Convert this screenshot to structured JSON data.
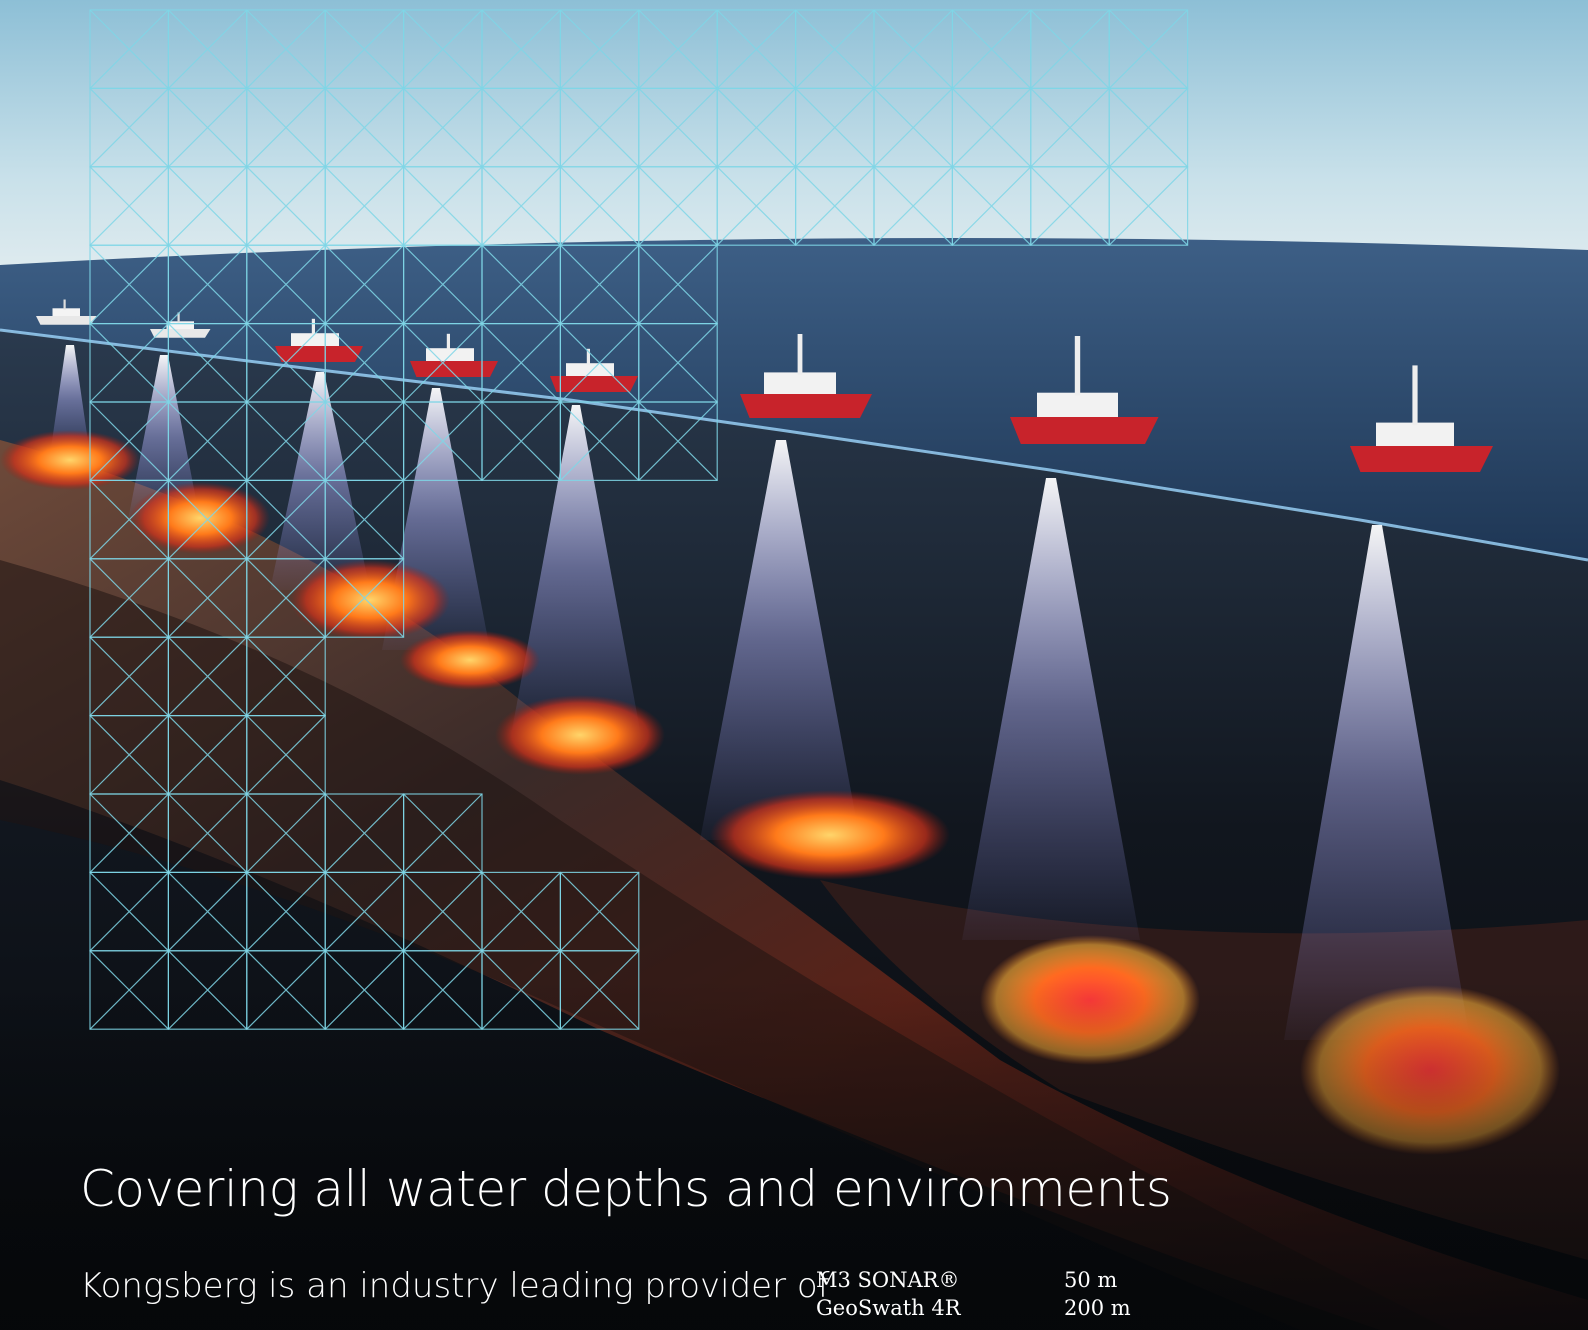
{
  "headline": "Covering all water depths and environments",
  "intro": "Kongsberg is an industry leading provider of",
  "specs": [
    {
      "product": "M3 SONAR®",
      "depth": "50 m"
    },
    {
      "product": "GeoSwath 4R",
      "depth": "200 m"
    }
  ],
  "colors": {
    "grid_line": "#7fd6e6",
    "sky_top": "#9ec9dc",
    "ocean": "#2e4d73",
    "hull_red": "#c8232b",
    "seabed_glow": "#ff7a1a",
    "background": "#050709"
  }
}
